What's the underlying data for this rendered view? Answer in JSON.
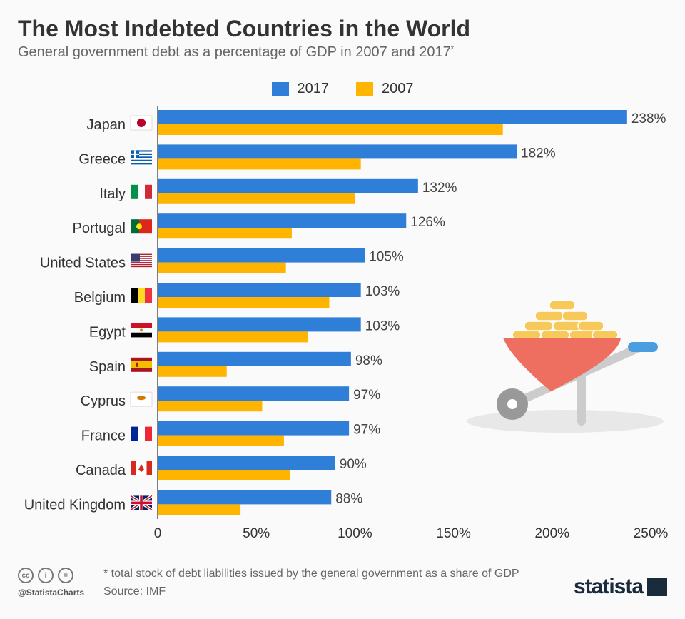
{
  "header": {
    "title": "The Most Indebted Countries in the World",
    "subtitle": "General government debt as a percentage of GDP in 2007 and 2017",
    "subtitle_mark": "*"
  },
  "chart_data": {
    "type": "bar",
    "orientation": "horizontal",
    "title": "The Most Indebted Countries in the World",
    "categories": [
      "Japan",
      "Greece",
      "Italy",
      "Portugal",
      "United States",
      "Belgium",
      "Egypt",
      "Spain",
      "Cyprus",
      "France",
      "Canada",
      "United Kingdom"
    ],
    "series": [
      {
        "name": "2017",
        "color": "#2f7ed8",
        "values": [
          238,
          182,
          132,
          126,
          105,
          103,
          103,
          98,
          97,
          97,
          90,
          88
        ],
        "labels": [
          "238%",
          "182%",
          "132%",
          "126%",
          "105%",
          "103%",
          "103%",
          "98%",
          "97%",
          "97%",
          "90%",
          "88%"
        ]
      },
      {
        "name": "2007",
        "color": "#ffb400",
        "values": [
          175,
          103,
          100,
          68,
          65,
          87,
          76,
          35,
          53,
          64,
          67,
          42
        ]
      }
    ],
    "xlim": [
      0,
      250
    ],
    "xticks": [
      "0",
      "50%",
      "100%",
      "150%",
      "200%",
      "250%"
    ],
    "xtick_values": [
      0,
      50,
      100,
      150,
      200,
      250
    ],
    "legend": "top",
    "grid": false
  },
  "flags": [
    "japan-flag",
    "greece-flag",
    "italy-flag",
    "portugal-flag",
    "us-flag",
    "belgium-flag",
    "egypt-flag",
    "spain-flag",
    "cyprus-flag",
    "france-flag",
    "canada-flag",
    "uk-flag"
  ],
  "footer": {
    "note": "* total stock of debt liabilities issued by the general government as a share of GDP",
    "source": "Source: IMF",
    "handle": "@StatistaCharts",
    "cc": [
      "cc",
      "i",
      "="
    ],
    "brand": "statista"
  }
}
